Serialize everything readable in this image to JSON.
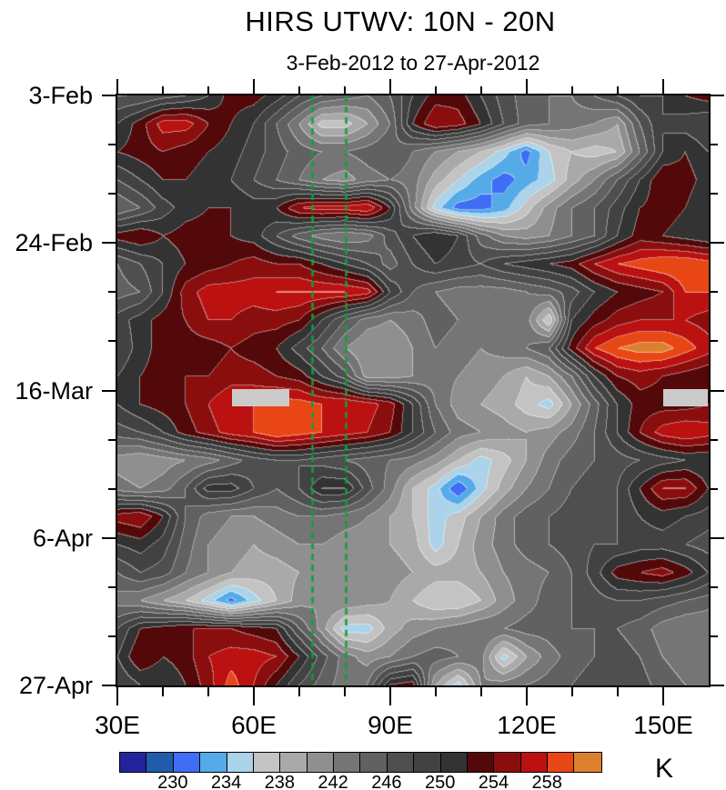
{
  "title": "HIRS UTWV: 10N - 20N",
  "subtitle": "3-Feb-2012 to 27-Apr-2012",
  "chart_data": {
    "type": "heatmap",
    "title": "HIRS UTWV: 10N - 20N",
    "subtitle": "3-Feb-2012 to 27-Apr-2012",
    "x_axis": {
      "kind": "longitude",
      "range_deg_east": [
        30,
        160
      ],
      "major_ticks_deg": [
        30,
        60,
        90,
        120,
        150
      ],
      "major_tick_labels": [
        "30E",
        "60E",
        "90E",
        "120E",
        "150E"
      ],
      "minor_ticks_deg": [
        40,
        50,
        70,
        80,
        100,
        110,
        130,
        140
      ]
    },
    "y_axis": {
      "kind": "time-downward",
      "range_days": [
        0,
        84
      ],
      "major_tick_days": [
        0,
        21,
        42,
        63,
        84
      ],
      "major_tick_labels": [
        "3-Feb",
        "24-Feb",
        "16-Mar",
        "6-Apr",
        "27-Apr"
      ],
      "minor_tick_days": [
        7,
        14,
        28,
        35,
        49,
        56,
        70,
        77
      ]
    },
    "colorbar": {
      "unit": "K",
      "boundary_labels": [
        "230",
        "234",
        "238",
        "242",
        "246",
        "250",
        "254",
        "258"
      ],
      "labeled_boundary_index": [
        2,
        4,
        6,
        8,
        10,
        12,
        14,
        16
      ],
      "levels_K": [
        228,
        230,
        232,
        234,
        236,
        238,
        240,
        242,
        244,
        246,
        248,
        250,
        252,
        254,
        256,
        258,
        260
      ],
      "colors": [
        "#23239b",
        "#1f5ca9",
        "#3f6df4",
        "#55aae8",
        "#abd3ea",
        "#c3c3c3",
        "#a9a9a9",
        "#8f8f8f",
        "#757575",
        "#616161",
        "#4f4f4f",
        "#424242",
        "#333333",
        "#530909",
        "#8b0e0e",
        "#bb1111",
        "#e84715",
        "#dc8030"
      ]
    },
    "reference_lines": {
      "color": "#0aa33a",
      "style": "dashed",
      "lons_deg_east": [
        72.8,
        80.2
      ]
    },
    "missing_data_bars": [
      {
        "lon_range": [
          55.2,
          67.8
        ],
        "day_range": [
          41.8,
          44.3
        ],
        "color": "#cbcbcb"
      },
      {
        "lon_range": [
          150.0,
          159.8
        ],
        "day_range": [
          41.8,
          44.3
        ],
        "color": "#cbcbcb"
      }
    ],
    "grid": {
      "lons_deg_east": [
        30,
        35,
        40,
        45,
        50,
        55,
        60,
        65,
        70,
        75,
        80,
        85,
        90,
        95,
        100,
        105,
        110,
        115,
        120,
        125,
        130,
        135,
        140,
        145,
        150,
        155,
        160
      ],
      "dates": [
        "3-Feb",
        "7-Feb",
        "11-Feb",
        "15-Feb",
        "19-Feb",
        "23-Feb",
        "27-Feb",
        "2-Mar",
        "6-Mar",
        "10-Mar",
        "14-Mar",
        "18-Mar",
        "22-Mar",
        "26-Mar",
        "30-Mar",
        "3-Apr",
        "7-Apr",
        "11-Apr",
        "15-Apr",
        "19-Apr",
        "23-Apr",
        "27-Apr"
      ],
      "values_K": [
        [
          246,
          246,
          247,
          248,
          250,
          253,
          253,
          251,
          248,
          246,
          245,
          244,
          246,
          250,
          253,
          253,
          250,
          247,
          245,
          244,
          244,
          246,
          248,
          250,
          250,
          252,
          253
        ],
        [
          250,
          253,
          257,
          257,
          254,
          252,
          250,
          246,
          242,
          237,
          237,
          240,
          244,
          252,
          256,
          255,
          252,
          248,
          245,
          244,
          243,
          242,
          240,
          246,
          250,
          249,
          248
        ],
        [
          252,
          253,
          254,
          253,
          252,
          251,
          249,
          247,
          245,
          244,
          244,
          245,
          246,
          244,
          242,
          240,
          238,
          235,
          231,
          236,
          238,
          237,
          238,
          244,
          250,
          252,
          250
        ],
        [
          248,
          250,
          252,
          252,
          251,
          250,
          248,
          246,
          244,
          242,
          241,
          243,
          244,
          243,
          239,
          236,
          233,
          231,
          233,
          235,
          239,
          242,
          246,
          250,
          254,
          253,
          251
        ],
        [
          244,
          246,
          249,
          251,
          252,
          252,
          251,
          252,
          256,
          257,
          257,
          258,
          252,
          243,
          235,
          231,
          231,
          233,
          237,
          241,
          244,
          246,
          249,
          252,
          253,
          252,
          250
        ],
        [
          253,
          254,
          252,
          253,
          253,
          252,
          251,
          248,
          245,
          243,
          242,
          243,
          247,
          250,
          252,
          250,
          245,
          242,
          241,
          242,
          244,
          246,
          250,
          253,
          252,
          251,
          250
        ],
        [
          246,
          248,
          250,
          252,
          253,
          254,
          255,
          254,
          254,
          252,
          250,
          248,
          245,
          248,
          250,
          249,
          248,
          250,
          251,
          252,
          253,
          256,
          258,
          259,
          260,
          260,
          259
        ],
        [
          245,
          246,
          250,
          255,
          257,
          257,
          257,
          258,
          258,
          258,
          258,
          257,
          250,
          246,
          244,
          243,
          243,
          243,
          244,
          245,
          247,
          250,
          252,
          253,
          254,
          258,
          258
        ],
        [
          249,
          251,
          253,
          254,
          256,
          256,
          255,
          255,
          254,
          250,
          246,
          243,
          242,
          243,
          245,
          244,
          243,
          242,
          243,
          236,
          250,
          253,
          255,
          256,
          256,
          256,
          255
        ],
        [
          248,
          251,
          253,
          253,
          253,
          254,
          253,
          252,
          249,
          246,
          242,
          240,
          240,
          242,
          244,
          243,
          242,
          243,
          244,
          246,
          253,
          258,
          260,
          261,
          261,
          259,
          257
        ],
        [
          250,
          252,
          253,
          254,
          254,
          255,
          255,
          254,
          253,
          250,
          247,
          241,
          241,
          242,
          243,
          242,
          241,
          240,
          238,
          240,
          244,
          250,
          254,
          255,
          254,
          253,
          252
        ],
        [
          250,
          252,
          253,
          254,
          256,
          258,
          258,
          259,
          259,
          258,
          258,
          257,
          255,
          250,
          244,
          241,
          240,
          239,
          237,
          235,
          240,
          245,
          250,
          253,
          253,
          253,
          254
        ],
        [
          247,
          248,
          250,
          253,
          255,
          257,
          258,
          260,
          259,
          258,
          257,
          256,
          254,
          250,
          246,
          243,
          242,
          241,
          240,
          241,
          243,
          246,
          250,
          254,
          257,
          258,
          257
        ],
        [
          241,
          240,
          241,
          242,
          243,
          245,
          247,
          248,
          248,
          247,
          246,
          245,
          244,
          243,
          241,
          238,
          235,
          237,
          240,
          243,
          245,
          246,
          247,
          248,
          249,
          250,
          250
        ],
        [
          243,
          242,
          243,
          246,
          251,
          251,
          248,
          246,
          248,
          252,
          252,
          247,
          243,
          238,
          235,
          230,
          235,
          239,
          242,
          244,
          246,
          247,
          248,
          252,
          256,
          256,
          252
        ],
        [
          255,
          256,
          252,
          246,
          243,
          242,
          242,
          243,
          244,
          244,
          243,
          242,
          240,
          238,
          235,
          237,
          240,
          243,
          245,
          246,
          247,
          247,
          248,
          250,
          251,
          250,
          249
        ],
        [
          250,
          251,
          249,
          245,
          242,
          241,
          240,
          241,
          242,
          242,
          241,
          241,
          240,
          239,
          235,
          238,
          241,
          243,
          245,
          246,
          247,
          248,
          248,
          249,
          249,
          248,
          247
        ],
        [
          246,
          248,
          247,
          244,
          242,
          240,
          239,
          239,
          240,
          241,
          242,
          242,
          241,
          240,
          239,
          239,
          240,
          242,
          243,
          244,
          246,
          249,
          253,
          254,
          255,
          253,
          250
        ],
        [
          243,
          242,
          240,
          238,
          235,
          231,
          235,
          238,
          241,
          242,
          242,
          241,
          240,
          238,
          236,
          236,
          238,
          241,
          243,
          245,
          246,
          247,
          248,
          248,
          247,
          246,
          245
        ],
        [
          248,
          252,
          253,
          254,
          254,
          254,
          253,
          252,
          246,
          241,
          235,
          235,
          239,
          241,
          242,
          243,
          244,
          244,
          245,
          245,
          246,
          246,
          246,
          245,
          243,
          242,
          242
        ],
        [
          250,
          254,
          252,
          253,
          256,
          257,
          257,
          256,
          252,
          247,
          243,
          241,
          242,
          244,
          245,
          244,
          243,
          235,
          240,
          243,
          245,
          246,
          247,
          246,
          244,
          243,
          243
        ],
        [
          248,
          250,
          250,
          252,
          255,
          259,
          256,
          252,
          248,
          245,
          243,
          244,
          252,
          253,
          240,
          235,
          242,
          243,
          244,
          245,
          246,
          247,
          248,
          247,
          245,
          244,
          243
        ]
      ]
    }
  }
}
